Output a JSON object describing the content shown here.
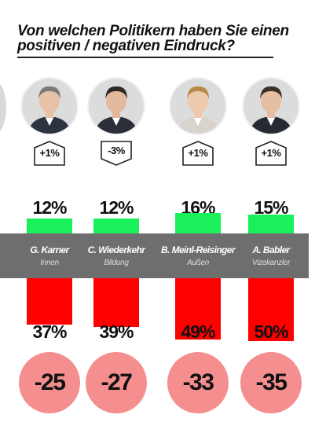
{
  "title": "Von welchen Politikern haben Sie einen positiven / negativen Eindruck?",
  "colors": {
    "positive": "#19f05a",
    "negative": "#ff0000",
    "band": "#6e6e6e",
    "net_circle": "#f58f8f"
  },
  "chart_data": {
    "type": "bar",
    "title": "Von welchen Politikern haben Sie einen positiven / negativen Eindruck?",
    "categories": [
      "G. Karner",
      "C. Wiederkehr",
      "B. Meinl-Reisinger",
      "A. Babler"
    ],
    "roles": [
      "Innen",
      "Bildung",
      "Außen",
      "Vizekanzler"
    ],
    "series": [
      {
        "values": [
          12,
          12,
          16,
          15
        ]
      },
      {
        "values": [
          37,
          39,
          49,
          50
        ]
      }
    ],
    "positive_labels": [
      "12%",
      "12%",
      "16%",
      "15%"
    ],
    "negative_labels": [
      "37%",
      "39%",
      "49%",
      "50%"
    ],
    "change": [
      "+1%",
      "-3%",
      "+1%",
      "+1%"
    ],
    "net": [
      "-25",
      "-27",
      "-33",
      "-35"
    ]
  }
}
